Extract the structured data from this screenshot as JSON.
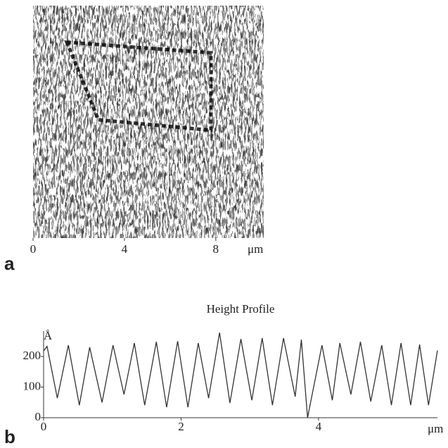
{
  "chart_data": [
    {
      "type": "image",
      "panel": "a",
      "xlim": [
        0,
        10.1
      ],
      "xticks": [
        0,
        4,
        8
      ],
      "x_unit": "μm"
    },
    {
      "type": "line",
      "panel": "b",
      "title": "Height Profile",
      "y_unit": "Å",
      "x_unit": "μm",
      "color": "#333333",
      "xlim": [
        0,
        5.73
      ],
      "xticks": [
        0,
        2,
        4
      ],
      "ylim": [
        0,
        283
      ],
      "yticks": [
        0,
        100,
        200
      ],
      "x": [
        0,
        0.05,
        0.2,
        0.36,
        0.52,
        0.67,
        0.85,
        1.01,
        1.17,
        1.32,
        1.47,
        1.64,
        1.79,
        1.95,
        2.1,
        2.25,
        2.4,
        2.56,
        2.71,
        2.87,
        3.03,
        3.18,
        3.33,
        3.49,
        3.66,
        3.75,
        3.84,
        4.05,
        4.2,
        4.31,
        4.47,
        4.61,
        4.76,
        4.92,
        5.06,
        5.2,
        5.34,
        5.47,
        5.6,
        5.73
      ],
      "values": [
        218,
        233,
        64,
        237,
        41,
        230,
        50,
        237,
        76,
        244,
        41,
        248,
        34,
        250,
        34,
        244,
        64,
        278,
        48,
        257,
        57,
        260,
        41,
        260,
        69,
        255,
        0,
        237,
        57,
        244,
        76,
        248,
        53,
        237,
        41,
        244,
        41,
        239,
        41,
        220
      ]
    }
  ]
}
